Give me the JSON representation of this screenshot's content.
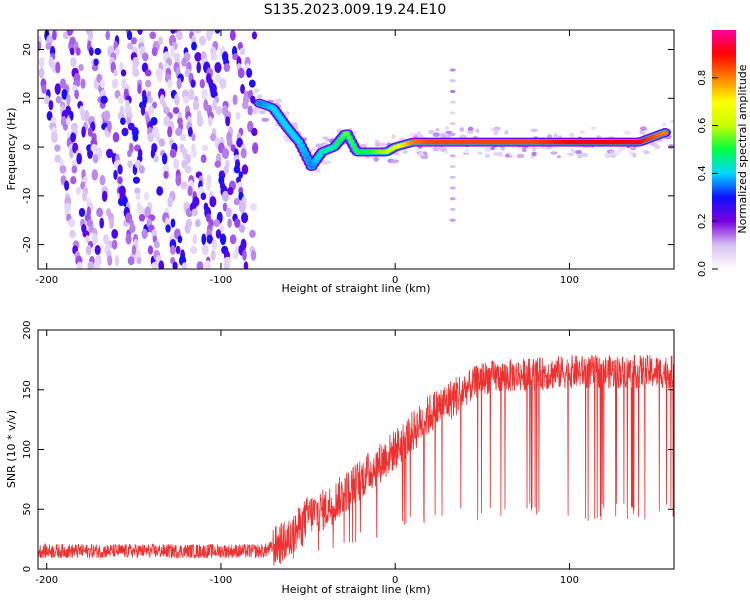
{
  "title": "S135.2023.009.19.24.E10",
  "chart_data": [
    {
      "type": "heatmap",
      "xlabel": "Height of straight line (km)",
      "ylabel": "Frequency (Hz)",
      "xlim": [
        -205,
        160
      ],
      "ylim": [
        -25,
        24
      ],
      "xticks": [
        -200,
        -100,
        0,
        100
      ],
      "yticks": [
        20,
        10,
        0,
        -10,
        -20
      ],
      "colorbar": {
        "label": "Normalized spectral amplitude",
        "range": [
          0,
          1
        ],
        "ticks": [
          "0.0",
          "0.2",
          "0.4",
          "0.6",
          "0.8"
        ],
        "stops": [
          "#ffffff",
          "#d7c0f2",
          "#7a00e0",
          "#1010ff",
          "#00d8ff",
          "#00ff40",
          "#c8ff00",
          "#ffff00",
          "#ff8000",
          "#ff0000",
          "#ff00a0"
        ]
      },
      "ridge": {
        "description_free": true,
        "x": [
          -78,
          -70,
          -62,
          -55,
          -48,
          -42,
          -35,
          -28,
          -22,
          -15,
          -5,
          0,
          10,
          20,
          40,
          60,
          80,
          100,
          120,
          140,
          155
        ],
        "y": [
          9,
          8,
          4,
          1,
          -4,
          -1,
          0,
          3,
          -1,
          -1,
          -1,
          0,
          1,
          1,
          1,
          1,
          1,
          1,
          1,
          1,
          3
        ],
        "amplitude": [
          0.35,
          0.4,
          0.4,
          0.4,
          0.35,
          0.45,
          0.45,
          0.55,
          0.5,
          0.5,
          0.6,
          0.65,
          0.8,
          0.85,
          0.85,
          0.85,
          0.85,
          0.9,
          0.9,
          0.9,
          0.8
        ]
      }
    },
    {
      "type": "line",
      "xlabel": "Height of straight line (km)",
      "ylabel": "SNR (10 * v/v)",
      "xlim": [
        -205,
        160
      ],
      "ylim": [
        0,
        200
      ],
      "xticks": [
        -200,
        -100,
        0,
        100
      ],
      "yticks": [
        0,
        50,
        100,
        150,
        200
      ],
      "color": "#ee3030",
      "envelope": {
        "x": [
          -205,
          -150,
          -100,
          -75,
          -60,
          -50,
          -40,
          -20,
          0,
          20,
          40,
          50,
          100,
          150,
          160
        ],
        "y": [
          15,
          15,
          15,
          15,
          25,
          45,
          50,
          75,
          100,
          130,
          150,
          160,
          165,
          165,
          165
        ]
      }
    }
  ]
}
